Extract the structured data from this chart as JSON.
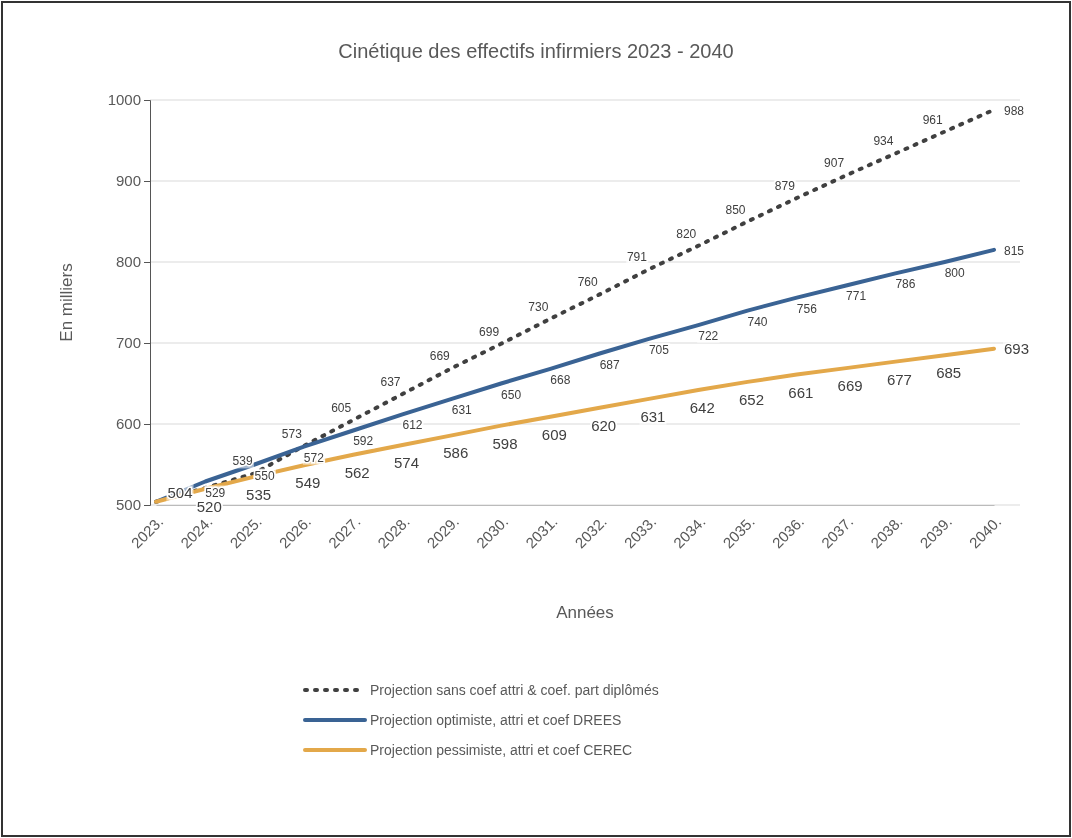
{
  "chart_data": {
    "type": "line",
    "title": "Cinétique des effectifs infirmiers 2023 - 2040",
    "xlabel": "Années",
    "ylabel": "En milliers",
    "categories": [
      "2023.",
      "2024.",
      "2025.",
      "2026.",
      "2027.",
      "2028.",
      "2029.",
      "2030.",
      "2031.",
      "2032.",
      "2033.",
      "2034.",
      "2035.",
      "2036.",
      "2037.",
      "2038.",
      "2039.",
      "2040."
    ],
    "ylim": [
      500,
      1000
    ],
    "yticks": [
      500,
      600,
      700,
      800,
      900,
      1000
    ],
    "grid": "y",
    "legend": "bottom",
    "marker": "none",
    "series": [
      {
        "name": "Projection sans coef attri & coef. part diplômés",
        "color": "#404040",
        "line_style": "dotted",
        "values": [
          504,
          521,
          539,
          573,
          605,
          637,
          669,
          699,
          730,
          760,
          791,
          820,
          850,
          879,
          907,
          934,
          961,
          988
        ],
        "value_labels": [
          null,
          null,
          "539",
          "573",
          "605",
          "637",
          "669",
          "699",
          "730",
          "760",
          "791",
          "820",
          "850",
          "879",
          "907",
          "934",
          "961",
          "988"
        ]
      },
      {
        "name": "Projection optimiste, attri et coef DREES",
        "color": "#3a6394",
        "line_style": "solid",
        "values": [
          504,
          529,
          550,
          572,
          592,
          612,
          631,
          650,
          668,
          687,
          705,
          722,
          740,
          756,
          771,
          786,
          800,
          815
        ],
        "value_labels": [
          null,
          "529",
          "550",
          "572",
          "592",
          "612",
          "631",
          "650",
          "668",
          "687",
          "705",
          "722",
          "740",
          "756",
          "771",
          "786",
          "800",
          "815"
        ]
      },
      {
        "name": "Projection pessimiste, attri et coef CEREC",
        "color": "#e3a84a",
        "line_style": "solid",
        "values": [
          504,
          520,
          535,
          549,
          562,
          574,
          586,
          598,
          609,
          620,
          631,
          642,
          652,
          661,
          669,
          677,
          685,
          693
        ],
        "value_labels": [
          "504",
          "520",
          "535",
          "549",
          "562",
          "574",
          "586",
          "598",
          "609",
          "620",
          "631",
          "642",
          "652",
          "661",
          "669",
          "677",
          "685",
          "693"
        ]
      }
    ]
  }
}
